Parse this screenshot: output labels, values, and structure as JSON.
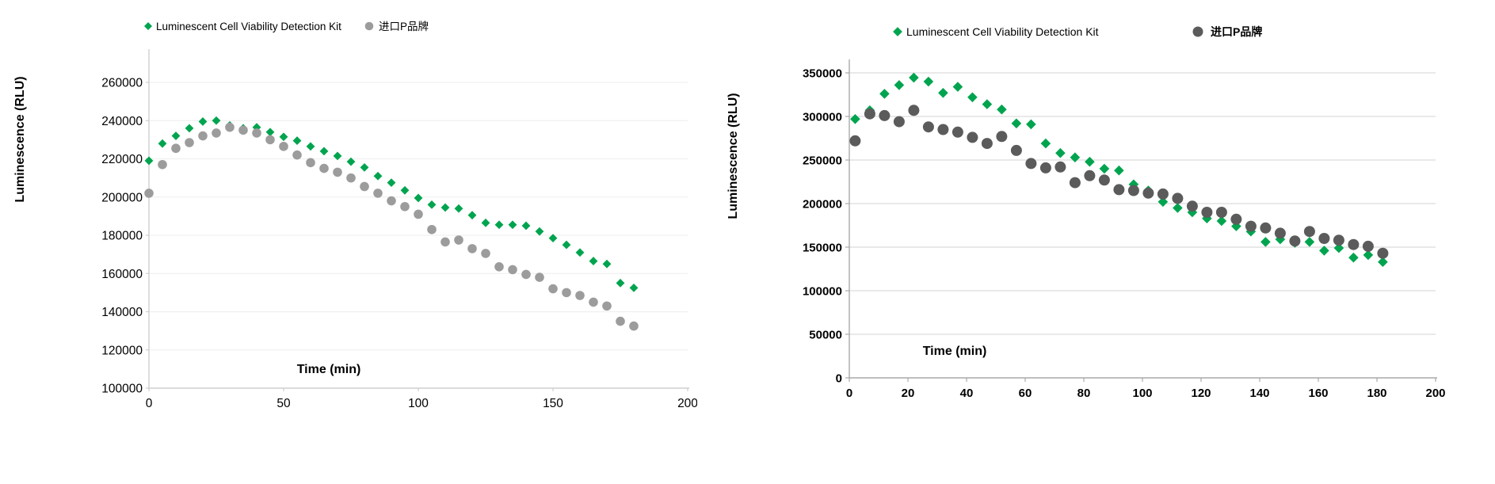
{
  "figure": {
    "background": "#ffffff",
    "description_colors": {
      "green": "#00a44f",
      "gray_light": "#9c9c9c",
      "gray_dark": "#595959"
    }
  },
  "chart_data": [
    {
      "type": "scatter",
      "title": "",
      "xlabel": "Time (min)",
      "ylabel": "Luminescence  (RLU)",
      "xlim": [
        0,
        200
      ],
      "ylim": [
        100000,
        260000
      ],
      "xticks": [
        0,
        50,
        100,
        150,
        200
      ],
      "yticks": [
        100000,
        120000,
        140000,
        160000,
        180000,
        200000,
        220000,
        240000,
        260000
      ],
      "grid": "horizontal",
      "legend_position": "top",
      "series": [
        {
          "name": "Luminescent Cell Viability Detection Kit",
          "marker": "diamond",
          "color": "#00a44f",
          "x": [
            0,
            5,
            10,
            15,
            20,
            25,
            30,
            35,
            40,
            45,
            50,
            55,
            60,
            65,
            70,
            75,
            80,
            85,
            90,
            95,
            100,
            105,
            110,
            115,
            120,
            125,
            130,
            135,
            140,
            145,
            150,
            155,
            160,
            165,
            170,
            175,
            180
          ],
          "y": [
            219000,
            228000,
            232000,
            236000,
            239500,
            240000,
            237500,
            236000,
            236500,
            234000,
            231500,
            229500,
            226500,
            224000,
            221500,
            218500,
            215500,
            211000,
            207500,
            203500,
            199500,
            196000,
            194500,
            194000,
            190500,
            186500,
            185500,
            185500,
            185000,
            182000,
            178500,
            175000,
            171000,
            166500,
            165000,
            155000,
            152500
          ]
        },
        {
          "name": "进口P品牌",
          "marker": "circle",
          "color": "#9c9c9c",
          "x": [
            0,
            5,
            10,
            15,
            20,
            25,
            30,
            35,
            40,
            45,
            50,
            55,
            60,
            65,
            70,
            75,
            80,
            85,
            90,
            95,
            100,
            105,
            110,
            115,
            120,
            125,
            130,
            135,
            140,
            145,
            150,
            155,
            160,
            165,
            170,
            175,
            180
          ],
          "y": [
            202000,
            217000,
            225500,
            228500,
            232000,
            233500,
            236500,
            235000,
            233500,
            230000,
            226500,
            222000,
            218000,
            215000,
            213000,
            210000,
            205500,
            202000,
            198000,
            195000,
            191000,
            183000,
            176500,
            177500,
            173000,
            170500,
            163500,
            162000,
            159500,
            158000,
            152000,
            150000,
            148500,
            145000,
            143000,
            135000,
            132500
          ]
        }
      ]
    },
    {
      "type": "scatter",
      "title": "",
      "xlabel": "Time  (min)",
      "ylabel": "Luminescence  (RLU)",
      "xlim": [
        0,
        200
      ],
      "ylim": [
        0,
        350000
      ],
      "xticks": [
        0,
        20,
        40,
        60,
        80,
        100,
        120,
        140,
        160,
        180,
        200
      ],
      "yticks": [
        0,
        50000,
        100000,
        150000,
        200000,
        250000,
        300000,
        350000
      ],
      "grid": "horizontal",
      "legend_position": "top",
      "series": [
        {
          "name": "Luminescent Cell Viability Detection Kit",
          "marker": "diamond",
          "color": "#00a44f",
          "x": [
            2,
            7,
            12,
            17,
            22,
            27,
            32,
            37,
            42,
            47,
            52,
            57,
            62,
            67,
            72,
            77,
            82,
            87,
            92,
            97,
            102,
            107,
            112,
            117,
            122,
            127,
            132,
            137,
            142,
            147,
            152,
            157,
            162,
            167,
            172,
            177,
            182
          ],
          "y": [
            297000,
            307000,
            326000,
            336000,
            344500,
            340000,
            327000,
            334000,
            322000,
            314000,
            308000,
            292000,
            291000,
            269000,
            258000,
            253000,
            248000,
            240000,
            238000,
            222000,
            215000,
            202000,
            195000,
            190000,
            183000,
            180000,
            174000,
            168000,
            156000,
            159000,
            155000,
            156000,
            146000,
            149000,
            138000,
            141000,
            133000
          ]
        },
        {
          "name": "进口P品牌",
          "marker": "circle",
          "color": "#5b5b5b",
          "x": [
            2,
            7,
            12,
            17,
            22,
            27,
            32,
            37,
            42,
            47,
            52,
            57,
            62,
            67,
            72,
            77,
            82,
            87,
            92,
            97,
            102,
            107,
            112,
            117,
            122,
            127,
            132,
            137,
            142,
            147,
            152,
            157,
            162,
            167,
            172,
            177,
            182
          ],
          "y": [
            272000,
            303000,
            301000,
            294000,
            307000,
            288000,
            285000,
            282000,
            276000,
            269000,
            277000,
            261000,
            246000,
            241000,
            242000,
            224000,
            232000,
            227000,
            216000,
            215000,
            212000,
            211000,
            206000,
            197000,
            190000,
            190000,
            182000,
            174000,
            172000,
            166000,
            157000,
            168000,
            160000,
            158000,
            153000,
            151000,
            143000
          ]
        }
      ]
    }
  ]
}
